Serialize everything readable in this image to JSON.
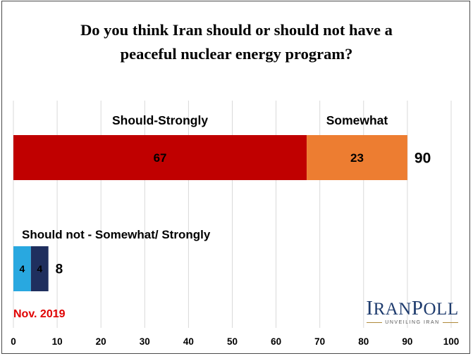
{
  "chart_data": {
    "type": "bar",
    "orientation": "horizontal",
    "stacked": true,
    "title": "Do you think Iran should or should not have a peaceful nuclear energy program?",
    "title_lines": [
      "Do you think Iran should or should not have a",
      "peaceful nuclear energy program?"
    ],
    "xlim": [
      0,
      100
    ],
    "x_ticks": [
      0,
      10,
      20,
      30,
      40,
      50,
      60,
      70,
      80,
      90,
      100
    ],
    "grid": "vertical",
    "bars": [
      {
        "name": "Should",
        "total": 90,
        "segments": [
          {
            "label": "Should-Strongly",
            "value": 67,
            "color": "#c00000",
            "value_color": "#ffffff"
          },
          {
            "label": "Somewhat",
            "value": 23,
            "color": "#ed7d31",
            "value_color": "#000000"
          }
        ]
      },
      {
        "name": "Should not",
        "total": 8,
        "group_label": "Should not - Somewhat/ Strongly",
        "segments": [
          {
            "label": "Somewhat",
            "value": 4,
            "color": "#29a8e0",
            "value_color": "#000000"
          },
          {
            "label": "Strongly",
            "value": 4,
            "color": "#1f2f5e",
            "value_color": "#ffffff"
          }
        ]
      }
    ]
  },
  "date_label": "Nov. 2019",
  "logo": {
    "name": "IRANPOLL",
    "tagline": "UNVEILING IRAN"
  },
  "colors": {
    "date": "#e00000",
    "logo": "#1f3c6e"
  }
}
